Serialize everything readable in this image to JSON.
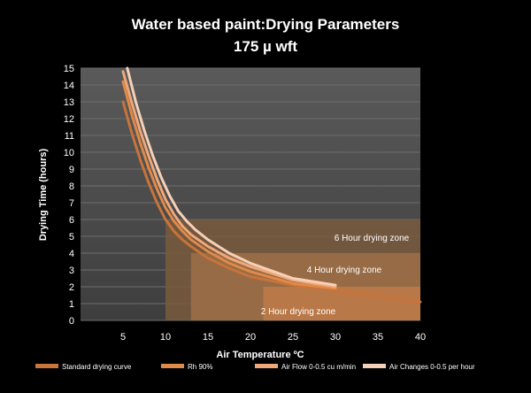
{
  "chart_data": {
    "type": "line",
    "title": "Water based paint:Drying Parameters",
    "subtitle": "175 µ wft",
    "xlabel": "Air Temperature ºC",
    "ylabel": "Drying Time (hours)",
    "xlim": [
      0,
      40
    ],
    "ylim": [
      0,
      15
    ],
    "x_ticks": [
      5,
      10,
      15,
      20,
      25,
      30,
      35,
      40
    ],
    "y_ticks": [
      0,
      1,
      2,
      3,
      4,
      5,
      6,
      7,
      8,
      9,
      10,
      11,
      12,
      13,
      14,
      15
    ],
    "grid": true,
    "legend_position": "bottom",
    "zones": [
      {
        "label": "6 Hour drying zone",
        "x_from": 10,
        "x_to": 40,
        "y_from": 0,
        "y_to": 6,
        "color": "#7a5a3e"
      },
      {
        "label": "4 Hour drying zone",
        "x_from": 13,
        "x_to": 40,
        "y_from": 0,
        "y_to": 4,
        "color": "#9c6e48"
      },
      {
        "label": "2 Hour drying zone",
        "x_from": 21.5,
        "x_to": 40,
        "y_from": 0,
        "y_to": 2,
        "color": "#c07a48"
      }
    ],
    "series": [
      {
        "name": "Standard drying curve",
        "color": "#c8743a",
        "x": [
          5,
          6,
          7,
          8,
          9,
          10,
          11,
          12,
          13,
          15,
          17.5,
          20,
          25,
          30,
          35,
          40
        ],
        "y": [
          13,
          11.2,
          9.6,
          8.2,
          7,
          6,
          5.3,
          4.8,
          4.4,
          3.7,
          3.1,
          2.6,
          2.1,
          1.8,
          1.45,
          1.1
        ]
      },
      {
        "name": "Rh 90%",
        "color": "#e08a4a",
        "x": [
          5,
          6,
          7,
          8,
          9,
          10,
          11,
          12,
          13,
          15,
          17.5,
          20,
          25,
          30
        ],
        "y": [
          14.2,
          12.3,
          10.6,
          9.1,
          7.8,
          6.7,
          5.9,
          5.3,
          4.8,
          4.1,
          3.4,
          2.9,
          2.2,
          1.9
        ]
      },
      {
        "name": "Air Flow 0-0.5 cu m/min",
        "color": "#f0a878",
        "x": [
          5,
          6,
          7,
          8,
          9,
          10,
          11,
          12,
          13,
          15,
          17.5,
          20,
          25,
          30
        ],
        "y": [
          14.8,
          13,
          11.3,
          9.8,
          8.4,
          7.2,
          6.3,
          5.6,
          5.1,
          4.4,
          3.7,
          3.2,
          2.4,
          2
        ]
      },
      {
        "name": "Air Changes 0-0.5 per hour",
        "color": "#f6d0b8",
        "x": [
          5.5,
          6.5,
          7.5,
          8.5,
          9.5,
          10.5,
          11.5,
          12.5,
          13.5,
          15,
          17.5,
          20,
          25,
          30
        ],
        "y": [
          15,
          13,
          11.3,
          9.8,
          8.5,
          7.4,
          6.5,
          5.9,
          5.4,
          4.8,
          4,
          3.4,
          2.5,
          2.1
        ]
      }
    ]
  }
}
